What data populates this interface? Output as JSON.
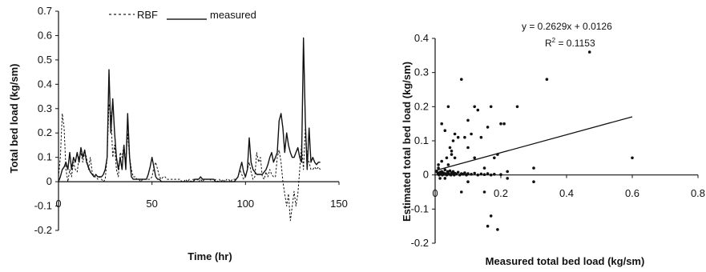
{
  "chart_data": [
    {
      "type": "line",
      "xlabel": "Time (hr)",
      "ylabel": "Total bed load (kg/sm)",
      "xlim": [
        0,
        150
      ],
      "ylim": [
        -0.2,
        0.7
      ],
      "xticks": [
        "0",
        "50",
        "100",
        "150"
      ],
      "yticks": [
        "-0.2",
        "-0.1",
        "0",
        "0.1",
        "0.2",
        "0.3",
        "0.4",
        "0.5",
        "0.6",
        "0.7"
      ],
      "grid": false,
      "legend_position": "top",
      "series": [
        {
          "name": "RBF",
          "style": "dashed",
          "x": [
            0,
            1,
            2,
            3,
            4,
            5,
            6,
            7,
            8,
            9,
            10,
            11,
            12,
            13,
            14,
            15,
            16,
            17,
            18,
            19,
            20,
            21,
            22,
            23,
            24,
            25,
            26,
            27,
            28,
            29,
            30,
            31,
            32,
            33,
            34,
            35,
            36,
            37,
            38,
            39,
            40,
            41,
            42,
            43,
            44,
            45,
            46,
            47,
            48,
            49,
            50,
            51,
            52,
            53,
            54,
            55,
            56,
            57,
            58,
            59,
            60,
            61,
            62,
            63,
            64,
            65,
            66,
            67,
            68,
            69,
            70,
            71,
            72,
            73,
            74,
            75,
            76,
            77,
            78,
            79,
            80,
            81,
            82,
            83,
            84,
            85,
            86,
            87,
            88,
            89,
            90,
            91,
            92,
            93,
            94,
            95,
            96,
            97,
            98,
            99,
            100,
            101,
            102,
            103,
            104,
            105,
            106,
            107,
            108,
            109,
            110,
            111,
            112,
            113,
            114,
            115,
            116,
            117,
            118,
            119,
            120,
            121,
            122,
            123,
            124,
            125,
            126,
            127,
            128,
            129,
            130,
            131,
            132,
            133,
            134,
            135,
            136,
            137,
            138,
            139,
            140
          ],
          "y": [
            0.02,
            0.1,
            0.28,
            0.22,
            0.05,
            0,
            0.05,
            0.02,
            0.08,
            0.05,
            0.04,
            0.1,
            0.12,
            0.08,
            0.12,
            0.1,
            0.05,
            0.1,
            0.04,
            0.02,
            0.02,
            0.01,
            0.02,
            0.01,
            0,
            0.01,
            0.1,
            0.32,
            0.28,
            0.1,
            0.15,
            0.05,
            0.02,
            0.12,
            0.1,
            0.15,
            0.08,
            0.2,
            0.1,
            0.05,
            0.02,
            0.02,
            0.01,
            0.01,
            0,
            0.01,
            0.01,
            0.01,
            0.01,
            0.01,
            0.02,
            0.06,
            0.08,
            0.05,
            0.02,
            0.01,
            0.02,
            0.02,
            0.01,
            0.01,
            0.01,
            0.01,
            0.01,
            0.01,
            0.01,
            0.01,
            0,
            0,
            0.01,
            0,
            0.01,
            0,
            0.01,
            0.01,
            0.01,
            0,
            0.01,
            0,
            0.01,
            0.01,
            0.01,
            0.01,
            0,
            0,
            0.01,
            0,
            0.01,
            0,
            0.01,
            0,
            0.01,
            0.01,
            0,
            0.01,
            0.01,
            0.01,
            0.02,
            0.05,
            0.03,
            0.01,
            0.02,
            0.05,
            0.08,
            0.04,
            0.01,
            0.02,
            0.12,
            0.08,
            0.1,
            0.02,
            0.01,
            0.04,
            0.02,
            0.05,
            0.03,
            0.02,
            0.02,
            0.1,
            0.13,
            0.08,
            0,
            -0.05,
            -0.1,
            -0.05,
            -0.16,
            -0.1,
            -0.04,
            -0.1,
            -0.05,
            0.05,
            0.15,
            0.05,
            0.22,
            0.1,
            0.08,
            0.05,
            0.05,
            0.06,
            0.05,
            0.06,
            0.05
          ]
        },
        {
          "name": "measured",
          "style": "solid",
          "x": [
            0,
            1,
            2,
            3,
            4,
            5,
            6,
            7,
            8,
            9,
            10,
            11,
            12,
            13,
            14,
            15,
            16,
            17,
            18,
            19,
            20,
            21,
            22,
            23,
            24,
            25,
            26,
            27,
            28,
            29,
            30,
            31,
            32,
            33,
            34,
            35,
            36,
            37,
            38,
            39,
            40,
            41,
            42,
            43,
            44,
            45,
            46,
            47,
            48,
            49,
            50,
            51,
            52,
            53,
            54,
            55,
            56,
            57,
            58,
            59,
            60,
            61,
            62,
            63,
            64,
            65,
            66,
            67,
            68,
            69,
            70,
            71,
            72,
            73,
            74,
            75,
            76,
            77,
            78,
            79,
            80,
            81,
            82,
            83,
            84,
            85,
            86,
            87,
            88,
            89,
            90,
            91,
            92,
            93,
            94,
            95,
            96,
            97,
            98,
            99,
            100,
            101,
            102,
            103,
            104,
            105,
            106,
            107,
            108,
            109,
            110,
            111,
            112,
            113,
            114,
            115,
            116,
            117,
            118,
            119,
            120,
            121,
            122,
            123,
            124,
            125,
            126,
            127,
            128,
            129,
            130,
            131,
            132,
            133,
            134,
            135,
            136,
            137,
            138,
            139,
            140
          ],
          "y": [
            0,
            0.02,
            0.05,
            0.06,
            0.08,
            0.05,
            0.12,
            0.05,
            0.1,
            0.08,
            0.12,
            0.08,
            0.14,
            0.1,
            0.13,
            0.08,
            0.06,
            0.04,
            0.03,
            0.02,
            0.03,
            0.02,
            0.02,
            0.02,
            0.03,
            0.05,
            0.1,
            0.46,
            0.2,
            0.34,
            0.2,
            0.1,
            0.05,
            0.1,
            0.05,
            0.15,
            0.05,
            0.28,
            0.1,
            0.02,
            0.01,
            0.01,
            0.01,
            0.01,
            0.01,
            0.01,
            0.01,
            0.01,
            0.03,
            0.06,
            0.1,
            0.06,
            0.02,
            0.01,
            0.01,
            0,
            0,
            0,
            0,
            0,
            0,
            0,
            0,
            0,
            0,
            0,
            0,
            0,
            0,
            0,
            0,
            0,
            0,
            0.01,
            0.01,
            0.01,
            0.02,
            0.01,
            0.01,
            0.01,
            0.01,
            0.01,
            0.01,
            0.01,
            0,
            0,
            0,
            0,
            0,
            0,
            0,
            0,
            0,
            0,
            0,
            0.01,
            0.02,
            0.05,
            0.08,
            0.04,
            0.02,
            0.05,
            0.18,
            0.08,
            0.05,
            0.04,
            0.03,
            0.03,
            0.03,
            0.03,
            0.04,
            0.05,
            0.07,
            0.1,
            0.12,
            0.08,
            0.1,
            0.12,
            0.25,
            0.28,
            0.22,
            0.12,
            0.2,
            0.15,
            0.12,
            0.1,
            0.1,
            0.12,
            0.14,
            0.1,
            0.08,
            0.59,
            0.25,
            0.05,
            0.22,
            0.08,
            0.1,
            0.08,
            0.07,
            0.08,
            0.08
          ]
        }
      ]
    },
    {
      "type": "scatter",
      "xlabel": "Measured total bed load (kg/sm)",
      "ylabel": "Estimated total bed load (kg/sm)",
      "xlim": [
        0,
        0.8
      ],
      "ylim": [
        -0.2,
        0.4
      ],
      "xticks": [
        "0",
        "0.2",
        "0.4",
        "0.6",
        "0.8"
      ],
      "yticks": [
        "-0.2",
        "-0.1",
        "0",
        "0.1",
        "0.2",
        "0.3",
        "0.4"
      ],
      "grid": false,
      "equation": "y = 0.2629x + 0.0126",
      "r2_label": "R",
      "r2_sup": "2",
      "r2_value": " = 0.1153",
      "trendline": {
        "slope": 0.2629,
        "intercept": 0.0126,
        "x_range": [
          0,
          0.6
        ]
      },
      "points": [
        [
          0.005,
          0.01
        ],
        [
          0.008,
          0.005
        ],
        [
          0.01,
          0.02
        ],
        [
          0.012,
          0
        ],
        [
          0.015,
          0.008
        ],
        [
          0.018,
          0.004
        ],
        [
          0.02,
          0.01
        ],
        [
          0.022,
          0
        ],
        [
          0.025,
          0.006
        ],
        [
          0.028,
          0.002
        ],
        [
          0.03,
          0.015
        ],
        [
          0.032,
          0.004
        ],
        [
          0.035,
          0
        ],
        [
          0.038,
          0.01
        ],
        [
          0.04,
          0.005
        ],
        [
          0.042,
          0.002
        ],
        [
          0.045,
          0.012
        ],
        [
          0.048,
          0
        ],
        [
          0.05,
          0.006
        ],
        [
          0.052,
          0.004
        ],
        [
          0.055,
          0.01
        ],
        [
          0.058,
          0
        ],
        [
          0.06,
          0.005
        ],
        [
          0.065,
          0.003
        ],
        [
          0.07,
          0.008
        ],
        [
          0.075,
          0
        ],
        [
          0.08,
          0.004
        ],
        [
          0.085,
          0.002
        ],
        [
          0.09,
          0.006
        ],
        [
          0.095,
          0
        ],
        [
          0.1,
          0.004
        ],
        [
          0.11,
          0.002
        ],
        [
          0.12,
          0.005
        ],
        [
          0.13,
          0
        ],
        [
          0.14,
          0.003
        ],
        [
          0.15,
          0.001
        ],
        [
          0.16,
          0.004
        ],
        [
          0.17,
          0
        ],
        [
          0.18,
          0.002
        ],
        [
          0.2,
          0.001
        ],
        [
          0.01,
          0.03
        ],
        [
          0.015,
          -0.01
        ],
        [
          0.02,
          0.04
        ],
        [
          0.03,
          -0.01
        ],
        [
          0.035,
          0.05
        ],
        [
          0.04,
          0.03
        ],
        [
          0.045,
          0.08
        ],
        [
          0.05,
          0.06
        ],
        [
          0.055,
          0.1
        ],
        [
          0.06,
          0.05
        ],
        [
          0.02,
          0.15
        ],
        [
          0.03,
          0.13
        ],
        [
          0.04,
          0.2
        ],
        [
          0.05,
          0.07
        ],
        [
          0.06,
          0.12
        ],
        [
          0.07,
          0.11
        ],
        [
          0.08,
          0.28
        ],
        [
          0.09,
          0.11
        ],
        [
          0.1,
          0.08
        ],
        [
          0.11,
          0.12
        ],
        [
          0.12,
          0.05
        ],
        [
          0.13,
          0.19
        ],
        [
          0.14,
          0.11
        ],
        [
          0.15,
          0.02
        ],
        [
          0.16,
          0.14
        ],
        [
          0.17,
          0.2
        ],
        [
          0.18,
          0.05
        ],
        [
          0.19,
          0.06
        ],
        [
          0.2,
          0.15
        ],
        [
          0.21,
          0.15
        ],
        [
          0.22,
          0.01
        ],
        [
          0.25,
          0.2
        ],
        [
          0.3,
          0.02
        ],
        [
          0.34,
          0.28
        ],
        [
          0.47,
          0.36
        ],
        [
          0.6,
          0.05
        ],
        [
          0.15,
          -0.05
        ],
        [
          0.16,
          -0.15
        ],
        [
          0.17,
          -0.12
        ],
        [
          0.19,
          -0.16
        ],
        [
          0.22,
          -0.01
        ],
        [
          0.08,
          -0.05
        ],
        [
          0.1,
          -0.02
        ],
        [
          0.3,
          -0.02
        ],
        [
          0.12,
          0.2
        ],
        [
          0.1,
          0.16
        ]
      ]
    }
  ]
}
